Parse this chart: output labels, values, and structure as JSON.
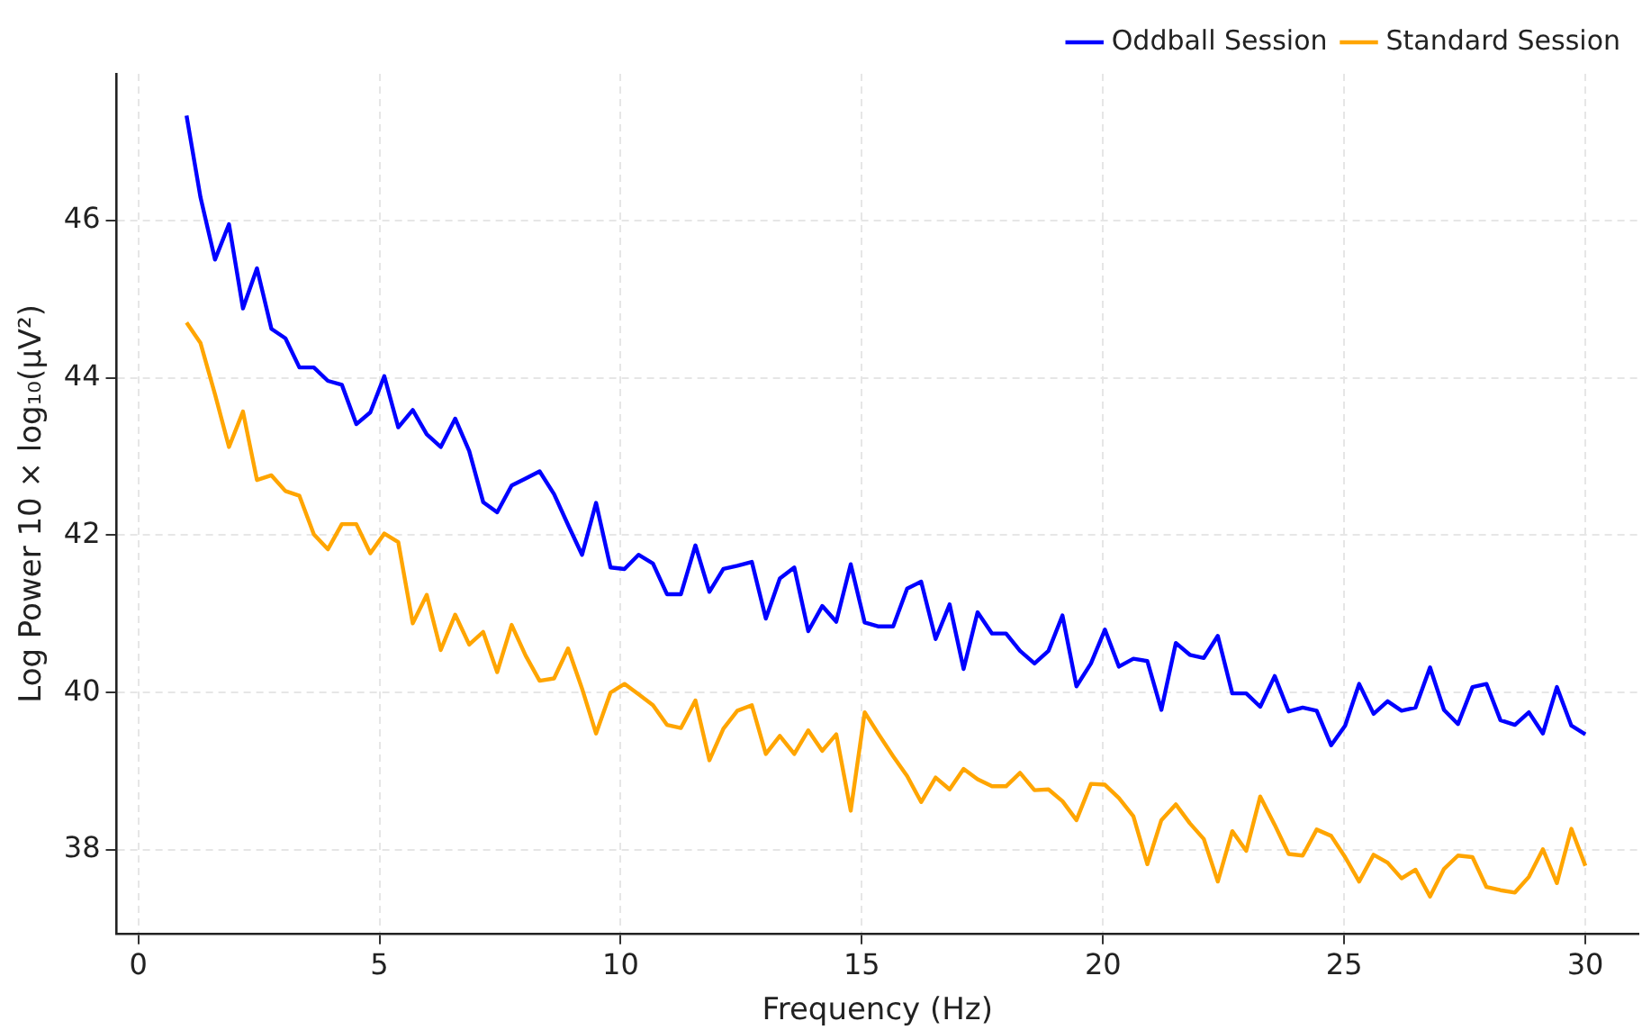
{
  "chart_data": {
    "type": "line",
    "xlabel": "Frequency (Hz)",
    "ylabel": "Log Power 10 × log₁₀(μV²)",
    "x": [
      1.0,
      1.29,
      1.59,
      1.88,
      2.17,
      2.46,
      2.76,
      3.05,
      3.34,
      3.64,
      3.93,
      4.22,
      4.52,
      4.81,
      5.1,
      5.39,
      5.69,
      5.98,
      6.27,
      6.57,
      6.86,
      7.15,
      7.44,
      7.74,
      8.03,
      8.32,
      8.62,
      8.91,
      9.2,
      9.49,
      9.79,
      10.08,
      10.37,
      10.67,
      10.96,
      11.25,
      11.55,
      11.84,
      12.13,
      12.42,
      12.72,
      13.01,
      13.3,
      13.6,
      13.89,
      14.18,
      14.47,
      14.77,
      15.06,
      15.35,
      15.65,
      15.94,
      16.23,
      16.53,
      16.82,
      17.11,
      17.4,
      17.7,
      17.99,
      18.28,
      18.58,
      18.87,
      19.16,
      19.45,
      19.75,
      20.04,
      20.33,
      20.63,
      20.92,
      21.21,
      21.51,
      21.8,
      22.09,
      22.38,
      22.68,
      22.97,
      23.26,
      23.56,
      23.85,
      24.14,
      24.43,
      24.73,
      25.02,
      25.31,
      25.61,
      25.9,
      26.19,
      26.48,
      26.78,
      27.07,
      27.36,
      27.66,
      27.95,
      28.24,
      28.54,
      28.83,
      29.12,
      29.41,
      29.71,
      30.0
    ],
    "series": [
      {
        "name": "Oddball Session",
        "color": "#0000ff",
        "values": [
          47.33,
          46.29,
          45.5,
          45.95,
          44.88,
          45.39,
          44.62,
          44.5,
          44.13,
          44.13,
          43.96,
          43.91,
          43.41,
          43.56,
          44.02,
          43.37,
          43.59,
          43.28,
          43.12,
          43.48,
          43.07,
          42.42,
          42.29,
          42.63,
          42.72,
          42.81,
          42.52,
          42.13,
          41.75,
          42.41,
          41.59,
          41.57,
          41.75,
          41.64,
          41.25,
          41.25,
          41.87,
          41.28,
          41.57,
          41.61,
          41.66,
          40.94,
          41.45,
          41.59,
          40.78,
          41.1,
          40.9,
          41.63,
          40.89,
          40.84,
          40.84,
          41.32,
          41.41,
          40.68,
          41.12,
          40.3,
          41.02,
          40.75,
          40.75,
          40.53,
          40.37,
          40.53,
          40.98,
          40.08,
          40.37,
          40.8,
          40.33,
          40.43,
          40.4,
          39.78,
          40.63,
          40.48,
          40.44,
          40.72,
          39.99,
          39.99,
          39.82,
          40.21,
          39.76,
          39.81,
          39.77,
          39.33,
          39.58,
          40.11,
          39.73,
          39.89,
          39.77,
          39.81,
          40.32,
          39.78,
          39.6,
          40.07,
          40.11,
          39.65,
          39.59,
          39.75,
          39.48,
          40.07,
          39.58,
          39.47
        ]
      },
      {
        "name": "Standard Session",
        "color": "#ffa500",
        "values": [
          44.7,
          44.44,
          43.79,
          43.12,
          43.57,
          42.7,
          42.76,
          42.56,
          42.5,
          42.01,
          41.82,
          42.14,
          42.14,
          41.77,
          42.02,
          41.91,
          40.88,
          41.24,
          40.54,
          40.99,
          40.61,
          40.77,
          40.26,
          40.86,
          40.47,
          40.15,
          40.18,
          40.56,
          40.05,
          39.48,
          40.0,
          40.11,
          39.98,
          39.84,
          39.59,
          39.55,
          39.9,
          39.14,
          39.54,
          39.77,
          39.84,
          39.22,
          39.45,
          39.22,
          39.52,
          39.26,
          39.47,
          38.5,
          39.75,
          39.47,
          39.19,
          38.94,
          38.61,
          38.92,
          38.77,
          39.03,
          38.9,
          38.81,
          38.81,
          38.98,
          38.76,
          38.77,
          38.62,
          38.38,
          38.84,
          38.83,
          38.66,
          38.43,
          37.82,
          38.38,
          38.58,
          38.34,
          38.14,
          37.6,
          38.24,
          37.99,
          38.68,
          38.32,
          37.95,
          37.93,
          38.26,
          38.18,
          37.91,
          37.6,
          37.94,
          37.84,
          37.64,
          37.75,
          37.41,
          37.76,
          37.93,
          37.91,
          37.53,
          37.49,
          37.46,
          37.66,
          38.01,
          37.58,
          38.27,
          37.8
        ]
      }
    ],
    "xlim": [
      -0.45,
      31.1
    ],
    "ylim": [
      36.94,
      47.86
    ],
    "xticks": [
      0,
      5,
      10,
      15,
      20,
      25,
      30
    ],
    "yticks": [
      38,
      40,
      42,
      44,
      46
    ],
    "grid": true,
    "legend": "top right",
    "marker": "none",
    "line_style": "solid"
  }
}
